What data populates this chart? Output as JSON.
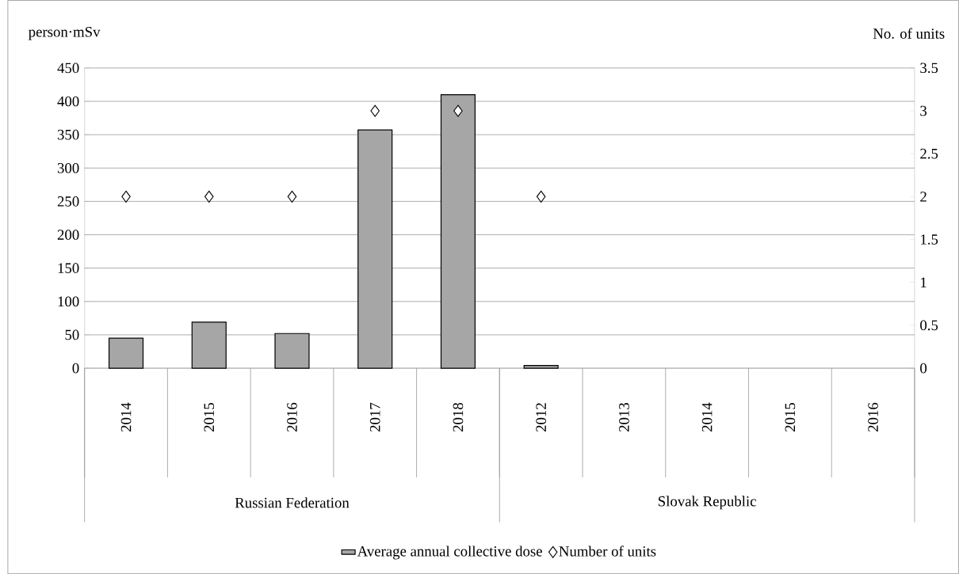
{
  "chart_data": {
    "type": "bar",
    "ylabel": "person·mSv",
    "y2label": "No. of units",
    "categories": [
      "2014",
      "2015",
      "2016",
      "2017",
      "2018",
      "2012",
      "2013",
      "2014",
      "2015",
      "2016"
    ],
    "annotations": [
      "Russian Federation",
      "Slovak Republic"
    ],
    "series": [
      {
        "name": "Average annual collective dose",
        "color": "#a6a6a6",
        "values": [
          45,
          69,
          52,
          357,
          410,
          4,
          null,
          null,
          null,
          null
        ]
      },
      {
        "name": "Number of units",
        "type": "scatter",
        "axis": "y2",
        "color": "#ffffff",
        "values": [
          2,
          2,
          2,
          3,
          3,
          2,
          null,
          null,
          null,
          null
        ]
      }
    ],
    "ylim": [
      0,
      450
    ],
    "yticks": [
      0,
      50,
      100,
      150,
      200,
      250,
      300,
      350,
      400,
      450
    ],
    "y2lim": [
      0,
      3.5
    ],
    "y2ticks": [
      0,
      0.5,
      1,
      1.5,
      2,
      2.5,
      3,
      3.5
    ],
    "grid": "y",
    "legend": "bottom",
    "marker": "diamond"
  }
}
